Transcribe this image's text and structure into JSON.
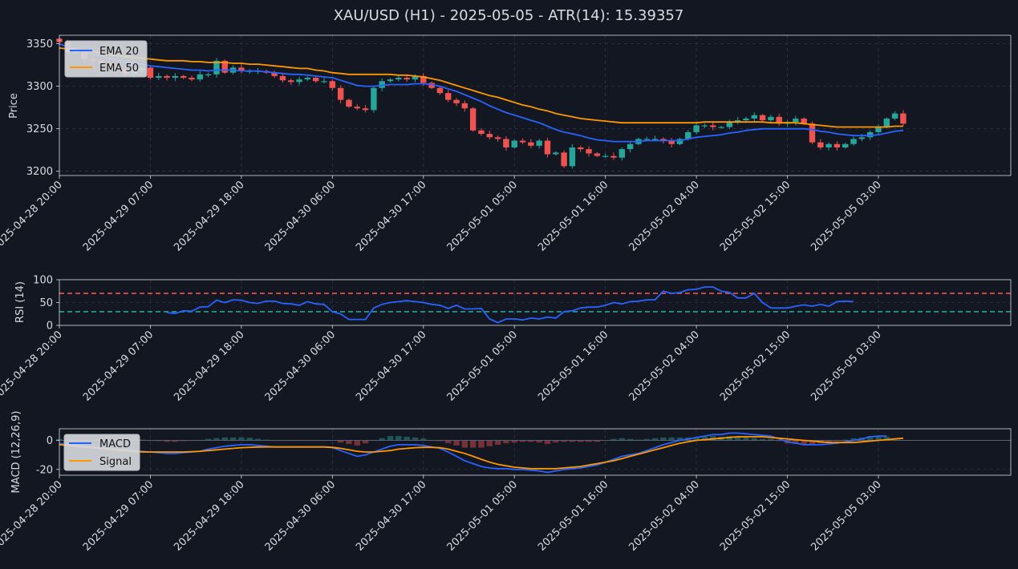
{
  "title": "XAU/USD (H1) - 2025-05-05 - ATR(14): 15.39357",
  "colors": {
    "background": "#131722",
    "text": "#d9dbe0",
    "grid": "#2e3446",
    "bull": "#26a69a",
    "bear": "#ef5350",
    "ema20": "#2962ff",
    "ema50": "#ff9800",
    "rsi": "#2962ff",
    "macd": "#2962ff",
    "signal": "#ff9800",
    "rsi_over": "#ef5350",
    "rsi_under": "#26a69a"
  },
  "x_ticks": [
    "2025-04-28 20:00",
    "2025-04-29 07:00",
    "2025-04-29 18:00",
    "2025-04-30 06:00",
    "2025-04-30 17:00",
    "2025-05-01 05:00",
    "2025-05-01 16:00",
    "2025-05-02 04:00",
    "2025-05-02 15:00",
    "2025-05-05 03:00"
  ],
  "x_tick_index": [
    0,
    11,
    22,
    33,
    44,
    55,
    66,
    77,
    88,
    99
  ],
  "price_panel": {
    "ylabel": "Price",
    "yticks": [
      3200,
      3250,
      3300,
      3350
    ],
    "legend": [
      "EMA 20",
      "EMA 50"
    ]
  },
  "rsi_panel": {
    "ylabel": "RSI (14)",
    "yticks": [
      0,
      50,
      100
    ],
    "overbought": 70,
    "oversold": 30
  },
  "macd_panel": {
    "ylabel": "MACD (12,26,9)",
    "yticks": [
      -20,
      0
    ],
    "legend": [
      "MACD",
      "Signal"
    ]
  },
  "chart_data": [
    {
      "type": "candlestick",
      "title": "XAU/USD (H1) - 2025-05-05 - ATR(14): 15.39357",
      "ylabel": "Price",
      "ylim": [
        3195,
        3360
      ],
      "x_range": [
        0,
        115
      ],
      "close": [
        3352,
        3340,
        3342,
        3332,
        3330,
        3327,
        3324,
        3320,
        3314,
        3318,
        3322,
        3310,
        3312,
        3310,
        3312,
        3310,
        3308,
        3314,
        3314,
        3330,
        3316,
        3322,
        3318,
        3318,
        3318,
        3316,
        3312,
        3307,
        3305,
        3308,
        3310,
        3306,
        3306,
        3298,
        3284,
        3276,
        3274,
        3272,
        3298,
        3306,
        3308,
        3310,
        3308,
        3312,
        3304,
        3298,
        3292,
        3284,
        3280,
        3274,
        3248,
        3244,
        3240,
        3238,
        3228,
        3236,
        3234,
        3230,
        3236,
        3220,
        3222,
        3206,
        3228,
        3226,
        3221,
        3218,
        3218,
        3216,
        3226,
        3232,
        3238,
        3238,
        3238,
        3236,
        3232,
        3238,
        3246,
        3254,
        3254,
        3252,
        3252,
        3258,
        3260,
        3262,
        3266,
        3260,
        3264,
        3256,
        3258,
        3262,
        3256,
        3234,
        3228,
        3232,
        3228,
        3232,
        3238,
        3240,
        3246,
        3252,
        3262,
        3268,
        3256
      ],
      "candles_note": "open/high/low derived per candle in script from close and adjacent values",
      "ema20": [
        3350,
        3346,
        3344,
        3340,
        3338,
        3336,
        3333,
        3331,
        3328,
        3327,
        3326,
        3324,
        3323,
        3322,
        3321,
        3320,
        3319,
        3319,
        3318,
        3319,
        3319,
        3319,
        3318,
        3318,
        3318,
        3317,
        3316,
        3315,
        3314,
        3314,
        3313,
        3312,
        3311,
        3310,
        3307,
        3304,
        3301,
        3300,
        3300,
        3301,
        3302,
        3302,
        3302,
        3303,
        3303,
        3302,
        3300,
        3297,
        3294,
        3290,
        3286,
        3282,
        3277,
        3273,
        3269,
        3266,
        3263,
        3260,
        3257,
        3253,
        3249,
        3246,
        3244,
        3242,
        3239,
        3237,
        3236,
        3235,
        3235,
        3235,
        3235,
        3236,
        3236,
        3236,
        3236,
        3236,
        3238,
        3240,
        3241,
        3242,
        3243,
        3245,
        3246,
        3248,
        3249,
        3250,
        3250,
        3250,
        3250,
        3250,
        3250,
        3249,
        3247,
        3246,
        3244,
        3243,
        3242,
        3242,
        3242,
        3243,
        3245,
        3247,
        3248
      ],
      "ema50": [
        3345,
        3344,
        3343,
        3342,
        3341,
        3339,
        3337,
        3336,
        3335,
        3334,
        3333,
        3332,
        3331,
        3330,
        3330,
        3330,
        3329,
        3329,
        3328,
        3328,
        3328,
        3327,
        3327,
        3326,
        3326,
        3325,
        3324,
        3323,
        3322,
        3321,
        3321,
        3319,
        3318,
        3316,
        3315,
        3314,
        3314,
        3314,
        3314,
        3314,
        3314,
        3313,
        3313,
        3312,
        3311,
        3309,
        3307,
        3304,
        3301,
        3298,
        3295,
        3292,
        3289,
        3287,
        3284,
        3281,
        3278,
        3276,
        3273,
        3271,
        3268,
        3266,
        3264,
        3262,
        3261,
        3260,
        3259,
        3258,
        3257,
        3257,
        3257,
        3257,
        3257,
        3257,
        3257,
        3257,
        3257,
        3257,
        3258,
        3258,
        3258,
        3258,
        3258,
        3258,
        3258,
        3258,
        3257,
        3257,
        3257,
        3257,
        3256,
        3255,
        3254,
        3253,
        3252,
        3252,
        3252,
        3252,
        3252,
        3252,
        3252,
        3253,
        3253
      ]
    },
    {
      "type": "line",
      "ylabel": "RSI (14)",
      "ylim": [
        0,
        100
      ],
      "series": [
        {
          "name": "RSI (14)",
          "start_index": 13,
          "values": [
            28,
            26,
            32,
            31,
            40,
            41,
            55,
            50,
            56,
            55,
            50,
            48,
            53,
            53,
            48,
            47,
            44,
            52,
            47,
            46,
            30,
            25,
            13,
            13,
            13,
            38,
            46,
            50,
            52,
            54,
            52,
            50,
            46,
            44,
            37,
            44,
            36,
            36,
            37,
            14,
            6,
            14,
            14,
            12,
            16,
            14,
            18,
            16,
            30,
            32,
            38,
            40,
            40,
            44,
            50,
            47,
            52,
            53,
            56,
            56,
            75,
            70,
            72,
            78,
            79,
            84,
            84,
            75,
            72,
            60,
            60,
            70,
            50,
            38,
            38,
            38,
            42,
            45,
            42,
            46,
            42,
            52,
            53,
            52
          ]
        }
      ]
    },
    {
      "type": "line_bar",
      "ylabel": "MACD (12,26,9)",
      "ylim": [
        -24,
        8
      ],
      "series": [
        {
          "name": "MACD",
          "values": [
            -2,
            -3,
            -3.5,
            -4,
            -4.5,
            -5,
            -5.5,
            -6,
            -6.5,
            -7,
            -7.5,
            -8,
            -8.5,
            -9,
            -9,
            -8.5,
            -8,
            -7.5,
            -6,
            -5,
            -4,
            -3.5,
            -3,
            -3,
            -3.5,
            -4,
            -4.5,
            -4.5,
            -4.5,
            -4.5,
            -4.5,
            -4.5,
            -4.5,
            -5,
            -7,
            -9,
            -11,
            -10,
            -8,
            -6,
            -4,
            -3,
            -3,
            -3,
            -3.5,
            -4.5,
            -5.5,
            -8,
            -11,
            -14,
            -16,
            -18,
            -19,
            -19.5,
            -19.5,
            -20,
            -20,
            -20.5,
            -21,
            -22,
            -21,
            -20,
            -19.5,
            -19,
            -18,
            -17,
            -15,
            -13,
            -11,
            -10,
            -9,
            -7,
            -5,
            -3,
            -1.5,
            0,
            1,
            2,
            3,
            4,
            4,
            5,
            5,
            4.5,
            4,
            3.5,
            3,
            1,
            -1,
            -2,
            -3,
            -3,
            -3,
            -2.5,
            -2,
            -1,
            0,
            1,
            2.5,
            3,
            3
          ]
        },
        {
          "name": "Signal",
          "values": [
            -3,
            -3.5,
            -4,
            -4.5,
            -5,
            -5.5,
            -6,
            -6.5,
            -7,
            -7.5,
            -8,
            -8,
            -8,
            -8,
            -8,
            -8,
            -7.8,
            -7.5,
            -7,
            -6.5,
            -6,
            -5.5,
            -5,
            -4.8,
            -4.6,
            -4.5,
            -4.5,
            -4.5,
            -4.5,
            -4.5,
            -4.5,
            -4.5,
            -4.5,
            -4.8,
            -5.5,
            -6.5,
            -7.5,
            -8,
            -8,
            -7.5,
            -7,
            -6,
            -5.5,
            -5,
            -4.8,
            -4.8,
            -5,
            -6,
            -7.5,
            -9,
            -11,
            -13,
            -15,
            -16.5,
            -17.5,
            -18.5,
            -19,
            -19.5,
            -19.5,
            -19.5,
            -19.5,
            -19,
            -18.5,
            -18,
            -17,
            -16,
            -15,
            -14,
            -12.5,
            -11,
            -9.5,
            -8,
            -6.5,
            -5,
            -3.5,
            -2,
            -1,
            0,
            0.5,
            1,
            1.5,
            2,
            2.5,
            2.5,
            2.5,
            2.5,
            2,
            1.5,
            1,
            0.5,
            0,
            -0.5,
            -1,
            -1.5,
            -1.5,
            -1.5,
            -1.5,
            -1,
            -0.5,
            0,
            0.5,
            1,
            1.5
          ]
        }
      ]
    }
  ]
}
